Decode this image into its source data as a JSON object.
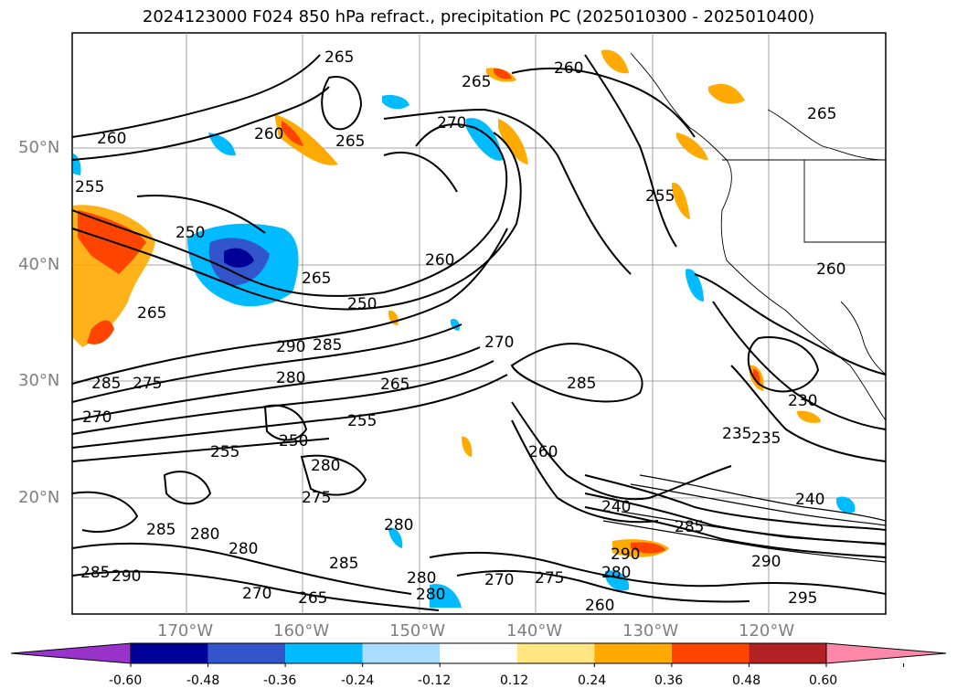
{
  "title": "2024123000 F024 850 hPa refract., precipitation PC (2025010300 - 2025010400)",
  "axes": {
    "lat_labels": [
      "50°N",
      "40°N",
      "30°N",
      "20°N"
    ],
    "lon_labels": [
      "170°W",
      "160°W",
      "150°W",
      "140°W",
      "130°W",
      "120°W"
    ]
  },
  "colorbar": {
    "ticks": [
      "-0.60",
      "-0.48",
      "-0.36",
      "-0.24",
      "-0.12",
      "0.12",
      "0.24",
      "0.36",
      "0.48",
      "0.60"
    ],
    "colors": [
      "#9933cc",
      "#000099",
      "#3355cc",
      "#00bbff",
      "#aaddff",
      "#ffffff",
      "#ffe680",
      "#ffaa00",
      "#ff4400",
      "#b22222",
      "#ff88aa"
    ]
  },
  "contour_labels": [
    "265",
    "260",
    "265",
    "265",
    "270",
    "260",
    "265",
    "260",
    "255",
    "250",
    "265",
    "260",
    "250",
    "255",
    "265",
    "260",
    "270",
    "290",
    "285",
    "280",
    "285",
    "275",
    "270",
    "265",
    "285",
    "260",
    "240",
    "230",
    "235",
    "235",
    "255",
    "255",
    "250",
    "280",
    "275",
    "280",
    "280",
    "285",
    "280",
    "285",
    "290",
    "285",
    "280",
    "280",
    "270",
    "265",
    "260",
    "270",
    "290",
    "280",
    "285",
    "290",
    "295",
    "240",
    "275"
  ],
  "color_legend": {
    "negative_pc": "blue shading",
    "positive_pc": "orange/red shading"
  }
}
